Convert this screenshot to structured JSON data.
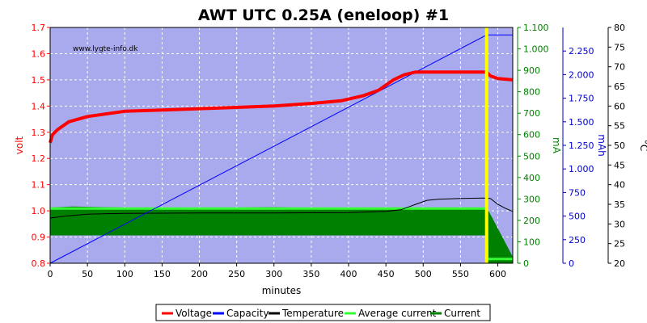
{
  "chart_data": {
    "type": "line",
    "title": "AWT UTC 0.25A (eneloop) #1",
    "watermark": "www.lygte-info.dk",
    "xlabel": "minutes",
    "xlim": [
      0,
      620
    ],
    "x_ticks": [
      0,
      50,
      100,
      150,
      200,
      250,
      300,
      350,
      400,
      450,
      500,
      550,
      600
    ],
    "axes": {
      "volt": {
        "label": "volt",
        "color": "#ff0000",
        "lim": [
          0.8,
          1.7
        ],
        "ticks": [
          "0.8",
          "0.9",
          "1.0",
          "1.1",
          "1.2",
          "1.3",
          "1.4",
          "1.5",
          "1.6",
          "1.7"
        ]
      },
      "mA": {
        "label": "mA",
        "color": "#008000",
        "lim": [
          0,
          1100
        ],
        "ticks": [
          "0",
          "100",
          "200",
          "300",
          "400",
          "500",
          "600",
          "700",
          "800",
          "900",
          "1.000",
          "1.100"
        ]
      },
      "mAh": {
        "label": "mAh",
        "color": "#0000cc",
        "lim": [
          0,
          2500
        ],
        "ticks": [
          "0",
          "250",
          "500",
          "750",
          "1.000",
          "1.250",
          "1.500",
          "1.750",
          "2.000",
          "2.250"
        ]
      },
      "temp": {
        "label": "°C",
        "color": "#000000",
        "lim": [
          20,
          80
        ],
        "ticks": [
          "20",
          "25",
          "30",
          "35",
          "40",
          "45",
          "50",
          "55",
          "60",
          "65",
          "70",
          "75",
          "80"
        ]
      }
    },
    "grid": true,
    "legend_position": "bottom",
    "marker": {
      "x": 585,
      "color": "#ffff00"
    },
    "series": [
      {
        "name": "Voltage",
        "axis": "volt",
        "color": "#ff0000",
        "points": [
          [
            0,
            1.26
          ],
          [
            3,
            1.29
          ],
          [
            10,
            1.31
          ],
          [
            25,
            1.34
          ],
          [
            50,
            1.36
          ],
          [
            100,
            1.38
          ],
          [
            150,
            1.385
          ],
          [
            200,
            1.39
          ],
          [
            250,
            1.395
          ],
          [
            300,
            1.4
          ],
          [
            350,
            1.41
          ],
          [
            390,
            1.42
          ],
          [
            420,
            1.44
          ],
          [
            440,
            1.46
          ],
          [
            460,
            1.5
          ],
          [
            475,
            1.52
          ],
          [
            490,
            1.53
          ],
          [
            520,
            1.53
          ],
          [
            560,
            1.53
          ],
          [
            580,
            1.53
          ],
          [
            585,
            1.53
          ],
          [
            590,
            1.515
          ],
          [
            600,
            1.505
          ],
          [
            620,
            1.5
          ]
        ]
      },
      {
        "name": "Capacity",
        "axis": "mAh",
        "color": "#0000ff",
        "points": [
          [
            0,
            0
          ],
          [
            585,
            2420
          ],
          [
            620,
            2420
          ]
        ]
      },
      {
        "name": "Temperature",
        "axis": "temp",
        "color": "#000000",
        "points": [
          [
            0,
            31.5
          ],
          [
            20,
            32
          ],
          [
            50,
            32.5
          ],
          [
            100,
            32.7
          ],
          [
            200,
            32.8
          ],
          [
            300,
            32.8
          ],
          [
            400,
            32.9
          ],
          [
            450,
            33.2
          ],
          [
            470,
            33.6
          ],
          [
            490,
            35
          ],
          [
            505,
            36
          ],
          [
            520,
            36.3
          ],
          [
            550,
            36.5
          ],
          [
            582,
            36.6
          ],
          [
            590,
            36.5
          ],
          [
            600,
            35
          ],
          [
            610,
            34
          ],
          [
            620,
            33.2
          ]
        ]
      },
      {
        "name": "Average current",
        "axis": "mA",
        "color": "#33ff33",
        "points": [
          [
            0,
            255
          ],
          [
            585,
            255
          ],
          [
            586,
            20
          ],
          [
            620,
            20
          ]
        ]
      },
      {
        "name": "Current",
        "axis": "mA",
        "color": "#008000",
        "band_upper": [
          [
            0,
            260
          ],
          [
            30,
            265
          ],
          [
            100,
            260
          ],
          [
            250,
            260
          ],
          [
            300,
            262
          ],
          [
            400,
            255
          ],
          [
            460,
            255
          ],
          [
            480,
            258
          ],
          [
            500,
            255
          ],
          [
            585,
            255
          ]
        ],
        "band_lower": [
          [
            0,
            130
          ],
          [
            585,
            130
          ]
        ],
        "tail": [
          [
            586,
            255
          ],
          [
            586,
            0
          ],
          [
            620,
            0
          ],
          [
            620,
            30
          ]
        ]
      }
    ]
  }
}
